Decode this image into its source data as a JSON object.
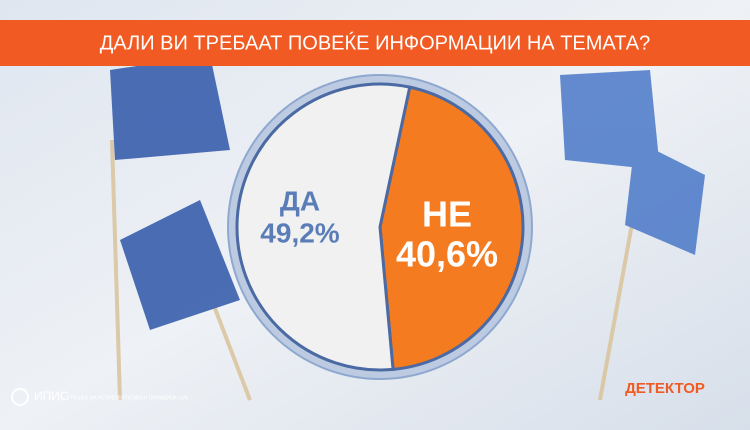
{
  "chart_data": {
    "type": "pie",
    "title": "ДАЛИ ВИ ТРЕБААТ ПОВЕЌЕ ИНФОРМАЦИИ НА ТЕМАТА?",
    "categories": [
      "ДА",
      "НЕ"
    ],
    "values": [
      49.2,
      40.6
    ],
    "value_labels": [
      "49,2%",
      "40,6%"
    ],
    "colors": [
      "#f1f1f1",
      "#f47b20"
    ],
    "label_colors": [
      "#5a7db8",
      "#ffffff"
    ]
  },
  "footer": {
    "source_logo": "ИПИС",
    "note": "ГРЕШКА НА РЕПРЕЗЕНТАТИВЕН ПРИМЕРОК ±3%",
    "brand": "ДЕТЕКТОР"
  }
}
